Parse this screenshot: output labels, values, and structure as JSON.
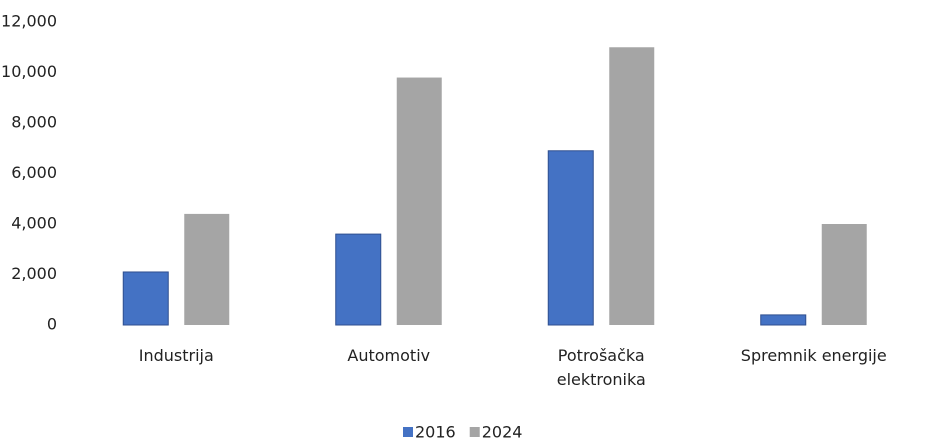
{
  "chart_data": {
    "type": "bar",
    "categories": [
      "Industrija",
      "Automotiv",
      "Potrošačka\nelektronika",
      "Spremnik energije"
    ],
    "series": [
      {
        "name": "2016",
        "color": "#4472c4",
        "values": [
          2100,
          3600,
          6900,
          400
        ]
      },
      {
        "name": "2024",
        "color": "#a5a5a5",
        "values": [
          4400,
          9800,
          11000,
          4000
        ]
      }
    ],
    "ylim": [
      0,
      12000
    ],
    "yticks": [
      0,
      {
        "value": 2000,
        "label": "2,000"
      },
      {
        "value": 4000,
        "label": "4,000"
      },
      {
        "value": 6000,
        "label": "6,000"
      },
      {
        "value": 8000,
        "label": "8,000"
      },
      {
        "value": 10000,
        "label": "10,000"
      },
      {
        "value": 12000,
        "label": "12,000"
      }
    ],
    "grid": false,
    "legend": "bottom"
  }
}
